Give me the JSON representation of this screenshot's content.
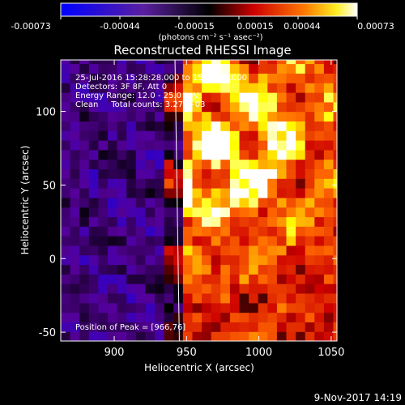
{
  "colorbar": {
    "ticks": [
      "-0.00073",
      "-0.00044",
      "-0.00015",
      "0.00015",
      "0.00044",
      "0.00073"
    ],
    "units": "(photons cm⁻² s⁻¹ asec⁻²)",
    "range": [
      -0.00073,
      0.00073
    ]
  },
  "annotations": {
    "time": "25-Jul-2016 15:28:28.000 to 15:38:28.000",
    "detectors": "Detectors: 3F 8F, Att 0",
    "energy": "Energy Range: 12.0 - 25.0 keV",
    "clean": "Clean     Total counts: 3.27E+03",
    "peak": "Position of Peak = [966,76]"
  },
  "footer": {
    "date": "9-Nov-2017 14:19"
  },
  "chart_data": {
    "type": "heatmap",
    "title": "Reconstructed RHESSI Image",
    "xlabel": "Heliocentric X (arcsec)",
    "ylabel": "Heliocentric Y (arcsec)",
    "xlim": [
      863,
      1054
    ],
    "ylim": [
      -56,
      135
    ],
    "xticks": [
      900,
      950,
      1000,
      1050
    ],
    "yticks": [
      -50,
      0,
      50,
      100
    ],
    "peak": [
      966,
      76
    ],
    "limb_line": [
      [
        942,
        135
      ],
      [
        945,
        -56
      ]
    ],
    "colormap": [
      "#0000ff",
      "#550099",
      "#000000",
      "#cc0000",
      "#ff6600",
      "#ffff00",
      "#ffffff"
    ]
  }
}
